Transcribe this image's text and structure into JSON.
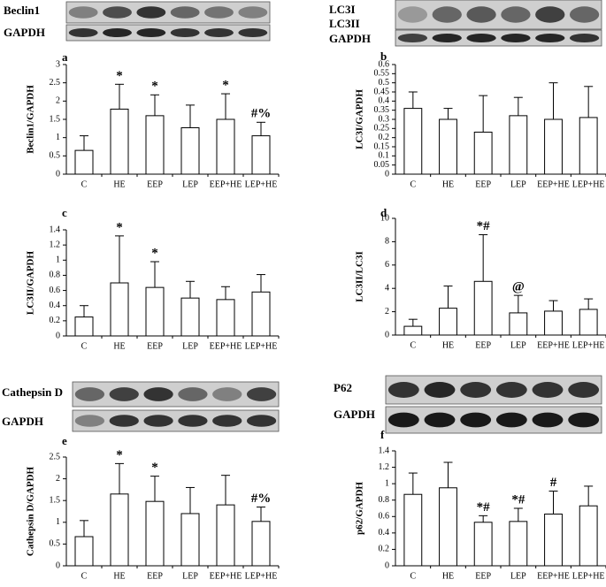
{
  "blots": [
    {
      "labels": [
        "Beclin1",
        "GAPDH"
      ]
    },
    {
      "labels": [
        "LC3I",
        "LC3II",
        "GAPDH"
      ]
    },
    {
      "labels": [
        "Cathepsin D",
        "GAPDH"
      ]
    },
    {
      "labels": [
        "P62",
        "GAPDH"
      ]
    }
  ],
  "chart_data": [
    {
      "type": "bar",
      "label": "a",
      "y_label": "Beclin1/GAPDH",
      "categories": [
        "C",
        "HE",
        "EEP",
        "LEP",
        "EEP+HE",
        "LEP+HE"
      ],
      "values": [
        0.65,
        1.78,
        1.6,
        1.27,
        1.5,
        1.05
      ],
      "errors": [
        0.4,
        0.68,
        0.57,
        0.62,
        0.7,
        0.37
      ],
      "annotations": [
        null,
        "*",
        "*",
        null,
        "*",
        "#%"
      ],
      "color": "#ffffff",
      "ylim": [
        0,
        3
      ],
      "yticks": [
        0,
        0.5,
        1,
        1.5,
        2,
        2.5,
        3
      ]
    },
    {
      "type": "bar",
      "label": "b",
      "y_label": "LC3I/GAPDH",
      "categories": [
        "C",
        "HE",
        "EEP",
        "LEP",
        "EEP+HE",
        "LEP+HE"
      ],
      "values": [
        0.36,
        0.3,
        0.23,
        0.32,
        0.3,
        0.31
      ],
      "errors": [
        0.09,
        0.06,
        0.2,
        0.1,
        0.2,
        0.17
      ],
      "color": "#ffffff",
      "ylim": [
        0,
        0.6
      ],
      "yticks": [
        0,
        0.05,
        0.1,
        0.15,
        0.2,
        0.25,
        0.3,
        0.35,
        0.4,
        0.45,
        0.5,
        0.55,
        0.6
      ]
    },
    {
      "type": "bar",
      "label": "c",
      "y_label": "LC3II/GAPDH",
      "categories": [
        "C",
        "HE",
        "EEP",
        "LEP",
        "EEP+HE",
        "LEP+HE"
      ],
      "values": [
        0.25,
        0.7,
        0.64,
        0.5,
        0.48,
        0.58
      ],
      "errors": [
        0.15,
        0.62,
        0.34,
        0.22,
        0.17,
        0.23
      ],
      "annotations": [
        null,
        "*",
        "*",
        null,
        null,
        null
      ],
      "color": "#ffffff",
      "ylim": [
        0,
        1.4
      ],
      "yticks": [
        0,
        0.2,
        0.4,
        0.6,
        0.8,
        1,
        1.2,
        1.4
      ]
    },
    {
      "type": "bar",
      "label": "d",
      "y_label": "LC3II/LC3I",
      "categories": [
        "C",
        "HE",
        "EEP",
        "LEP",
        "EEP+HE",
        "LEP+HE"
      ],
      "values": [
        0.75,
        2.3,
        4.6,
        1.9,
        2.05,
        2.2
      ],
      "errors": [
        0.6,
        1.9,
        4.0,
        1.5,
        0.9,
        0.9
      ],
      "annotations": [
        null,
        null,
        "*#",
        "@",
        null,
        null
      ],
      "color": "#ffffff",
      "ylim": [
        0,
        10
      ],
      "yticks": [
        0,
        2,
        4,
        6,
        8,
        10
      ]
    },
    {
      "type": "bar",
      "label": "e",
      "y_label": "Cathepsin D/GAPDH",
      "categories": [
        "C",
        "HE",
        "EEP",
        "LEP",
        "EEP+HE",
        "LEP+HE"
      ],
      "values": [
        0.67,
        1.65,
        1.48,
        1.2,
        1.4,
        1.02
      ],
      "errors": [
        0.37,
        0.7,
        0.58,
        0.6,
        0.68,
        0.33
      ],
      "annotations": [
        null,
        "*",
        "*",
        null,
        null,
        "#%"
      ],
      "color": "#ffffff",
      "ylim": [
        0,
        2.5
      ],
      "yticks": [
        0,
        0.5,
        1,
        1.5,
        2,
        2.5
      ]
    },
    {
      "type": "bar",
      "label": "f",
      "y_label": "p62/GAPDH",
      "categories": [
        "C",
        "HE",
        "EEP",
        "LEP",
        "EEP+HE",
        "LEP+HE"
      ],
      "values": [
        0.87,
        0.95,
        0.53,
        0.54,
        0.63,
        0.73
      ],
      "errors": [
        0.26,
        0.31,
        0.08,
        0.16,
        0.28,
        0.24
      ],
      "annotations": [
        null,
        null,
        "*#",
        "*#",
        "#",
        null
      ],
      "color": "#ffffff",
      "ylim": [
        0,
        1.4
      ],
      "yticks": [
        0,
        0.2,
        0.4,
        0.6,
        0.8,
        1,
        1.2,
        1.4
      ]
    }
  ]
}
